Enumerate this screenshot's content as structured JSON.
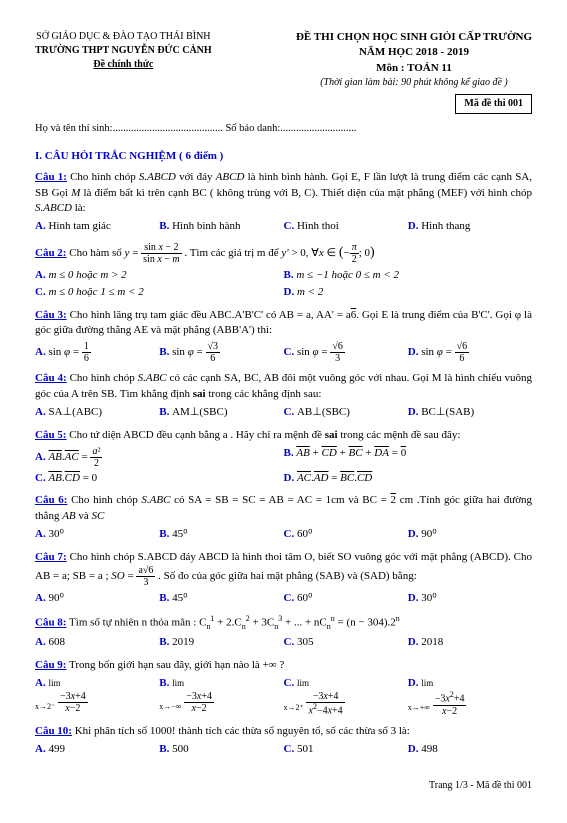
{
  "header": {
    "dept": "SỞ GIÁO DỤC & ĐÀO TẠO THÁI BÌNH",
    "school": "TRƯỜNG THPT NGUYỄN ĐỨC CẢNH",
    "official": "Đề chính thức",
    "title1": "ĐỀ THI CHỌN HỌC SINH GIỎI CẤP TRƯỜNG",
    "title2": "NĂM HỌC 2018 - 2019",
    "subject": "Môn : TOÁN 11",
    "duration": "(Thời gian làm bài: 90 phút không kể giao đề )",
    "code": "Mã đề thi 001"
  },
  "info": {
    "name_label": "Họ và tên thí sinh:",
    "dots1": "..........................................",
    "id_label": "Số báo danh:",
    "dots2": "............................."
  },
  "section1": "I. CÂU HỎI TRẮC NGHIỆM ( 6 điểm )",
  "q1": {
    "label": "Câu 1:",
    "text1": "Cho hình chóp ",
    "em1": "S.ABCD",
    "text2": " với đáy ",
    "em2": "ABCD",
    "text3": " là hình bình hành. Gọi E, F lần lượt là trung điểm các cạnh SA, SB Gọi ",
    "em3": "M",
    "text4": " là điểm bất kì trên cạnh BC ( không trùng với B, C). Thiết diện của mặt phẳng (MEF) với hình chóp ",
    "em4": "S.ABCD",
    "text5": " là:",
    "a": "Hình tam giác",
    "b": "Hình bình hành",
    "c": "Hình thoi",
    "d": "Hình thang"
  },
  "q2": {
    "label": "Câu 2:",
    "text": "Cho  hàm số ",
    "text2": ". Tìm các giá trị m để ",
    "a": "m ≤ 0  hoặc  m > 2",
    "b": "m ≤ −1  hoặc  0 ≤ m < 2",
    "c": "m ≤ 0  hoặc 1 ≤ m < 2",
    "d": "m < 2"
  },
  "q3": {
    "label": "Câu 3:",
    "text1": "Cho hình lăng trụ tam giác đều ABC.A'B'C' có AB = a,  AA' = a",
    "text2": ". Gọi E  là trung điểm của B'C'. Gọi φ là góc giữa đường thẳng AE và mặt phẳng (ABB'A') thì:"
  },
  "q4": {
    "label": "Câu 4:",
    "text": "Cho hình chóp ",
    "em": "S.ABC",
    "text2": " có các cạnh SA, BC, AB đôi một vuông góc với nhau. Gọi M là hình chiếu vuông góc của A trên SB. Tìm khẳng định ",
    "bold": "sai",
    "text3": " trong các khẳng định sau:",
    "a": "SA⊥(ABC)",
    "b": "AM⊥(SBC)",
    "c": "AB⊥(SBC)",
    "d": "BC⊥(SAB)"
  },
  "q5": {
    "label": "Câu 5:",
    "text": "Cho tứ diện ABCD đều cạnh  bằng a . Hãy chỉ ra mệnh đề ",
    "bold": "sai",
    "text2": " trong các mệnh đề sau đây:"
  },
  "q6": {
    "label": "Câu 6:",
    "text": "Cho hình chóp ",
    "em": "S.ABC",
    "text2": "  có SA = SB = SC = AB = AC = 1cm  và  BC = ",
    "text3": " cm .Tính góc giữa hai đường thẳng ",
    "em2": "AB",
    "text4": " và ",
    "em3": "SC",
    "a": "30⁰",
    "b": "45⁰",
    "c": "60⁰",
    "d": "90⁰"
  },
  "q7": {
    "label": "Câu 7:",
    "text": "Cho hình chóp S.ABCD đáy ABCD là hình thoi tâm O, biết SO vuông góc với mặt phẳng (ABCD). Cho AB = a;   SB = a ; ",
    "text2": ". Số đo của góc giữa hai mặt phẳng (SAB) và (SAD) bằng:",
    "a": "90⁰",
    "b": "45⁰",
    "c": "60⁰",
    "d": "30⁰"
  },
  "q8": {
    "label": "Câu 8:",
    "text": "Tìm số tự nhiên n thỏa mãn : ",
    "a": "608",
    "b": "2019",
    "c": "305",
    "d": "2018"
  },
  "q9": {
    "label": "Câu 9:",
    "text": "Trong bốn giới hạn sau đây, giới hạn nào là +∞ ?"
  },
  "q10": {
    "label": "Câu 10:",
    "text": "Khi phân tích số 1000! thành tích các thừa số nguyên tố, số các thừa số 3 là:",
    "a": "499",
    "b": "500",
    "c": "501",
    "d": "498"
  },
  "footer": "Trang 1/3 - Mã đề thi 001"
}
